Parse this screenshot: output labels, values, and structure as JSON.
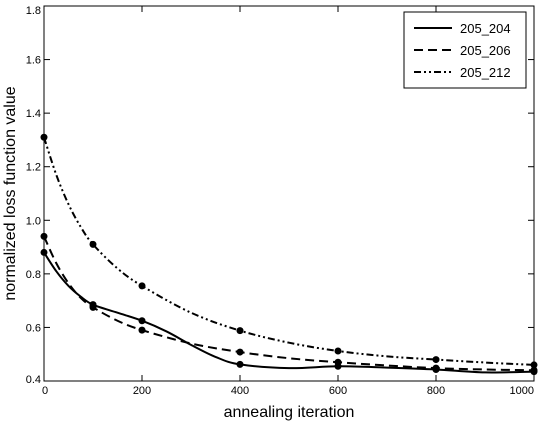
{
  "chart_data": {
    "type": "line",
    "title": "",
    "xlabel": "annealing iteration",
    "ylabel": "normalized loss function value",
    "xlim": [
      0,
      1000
    ],
    "ylim": [
      0.4,
      1.8
    ],
    "xticks": [
      "0",
      "200",
      "400",
      "600",
      "800",
      "1000"
    ],
    "yticks": [
      "0.4",
      "0.6",
      "0.8",
      "1.0",
      "1.2",
      "1.4",
      "1.6",
      "1.8"
    ],
    "grid": false,
    "legend_position": "top-right",
    "color": "#000000",
    "series": [
      {
        "name": "205_204",
        "dash": "solid",
        "markers": [
          [
            0,
            0.88
          ],
          [
            100,
            0.685
          ],
          [
            200,
            0.625
          ],
          [
            400,
            0.462
          ],
          [
            600,
            0.455
          ],
          [
            800,
            0.443
          ],
          [
            1000,
            0.435
          ]
        ],
        "curve": [
          [
            0,
            0.88
          ],
          [
            25,
            0.81
          ],
          [
            50,
            0.755
          ],
          [
            75,
            0.715
          ],
          [
            100,
            0.685
          ],
          [
            150,
            0.655
          ],
          [
            200,
            0.625
          ],
          [
            250,
            0.585
          ],
          [
            300,
            0.535
          ],
          [
            350,
            0.49
          ],
          [
            400,
            0.462
          ],
          [
            500,
            0.448
          ],
          [
            600,
            0.455
          ],
          [
            700,
            0.45
          ],
          [
            800,
            0.443
          ],
          [
            900,
            0.432
          ],
          [
            1000,
            0.435
          ]
        ]
      },
      {
        "name": "205_206",
        "dash": "dashed",
        "markers": [
          [
            0,
            0.94
          ],
          [
            100,
            0.675
          ],
          [
            200,
            0.59
          ],
          [
            400,
            0.508
          ],
          [
            600,
            0.47
          ],
          [
            800,
            0.448
          ],
          [
            1000,
            0.44
          ]
        ],
        "curve": [
          [
            0,
            0.94
          ],
          [
            25,
            0.84
          ],
          [
            50,
            0.765
          ],
          [
            75,
            0.71
          ],
          [
            100,
            0.675
          ],
          [
            150,
            0.625
          ],
          [
            200,
            0.59
          ],
          [
            300,
            0.54
          ],
          [
            400,
            0.508
          ],
          [
            500,
            0.485
          ],
          [
            600,
            0.47
          ],
          [
            700,
            0.458
          ],
          [
            800,
            0.448
          ],
          [
            900,
            0.443
          ],
          [
            1000,
            0.44
          ]
        ]
      },
      {
        "name": "205_212",
        "dash": "dash-dot-dot",
        "markers": [
          [
            0,
            1.31
          ],
          [
            100,
            0.91
          ],
          [
            200,
            0.755
          ],
          [
            400,
            0.588
          ],
          [
            600,
            0.512
          ],
          [
            800,
            0.48
          ],
          [
            1000,
            0.46
          ]
        ],
        "curve": [
          [
            0,
            1.31
          ],
          [
            25,
            1.17
          ],
          [
            50,
            1.06
          ],
          [
            75,
            0.975
          ],
          [
            100,
            0.91
          ],
          [
            150,
            0.82
          ],
          [
            200,
            0.755
          ],
          [
            300,
            0.655
          ],
          [
            400,
            0.588
          ],
          [
            500,
            0.543
          ],
          [
            600,
            0.512
          ],
          [
            700,
            0.492
          ],
          [
            800,
            0.48
          ],
          [
            900,
            0.469
          ],
          [
            1000,
            0.46
          ]
        ]
      }
    ]
  }
}
